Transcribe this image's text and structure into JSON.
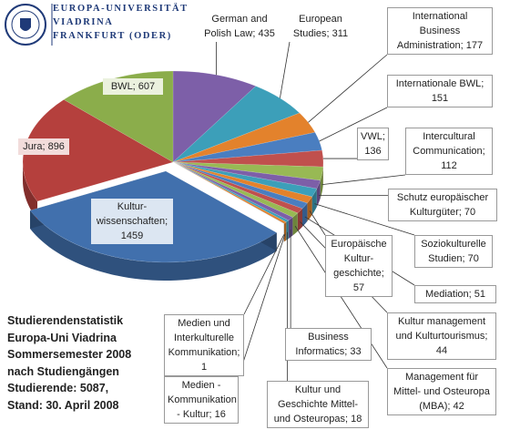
{
  "chart_data": {
    "type": "pie",
    "logo": [
      "EUROPA-UNIVERSITÄT",
      "VIADRINA",
      "FRANKFURT (ODER)"
    ],
    "title": [
      "Studierendenstatistik",
      "Europa-Uni Viadrina",
      "Sommersemester 2008",
      "nach Studiengängen",
      "Studierende: 5087,",
      "Stand:  30. April 2008"
    ],
    "values": [
      435,
      311,
      177,
      151,
      136,
      112,
      70,
      70,
      57,
      51,
      44,
      42,
      33,
      18,
      16,
      1,
      1459,
      896,
      607
    ],
    "value_labels": [
      "German and Polish Law; 435",
      "European Studies; 311",
      "International Business Administration; 177",
      "Internationale BWL; 151",
      "VWL; 136",
      "Intercultural Communication; 112",
      "Schutz europäischer Kulturgüter; 70",
      "Soziokulturelle Studien; 70",
      "Europäische Kultur-geschichte; 57",
      "Mediation; 51",
      "Kultur management und Kulturtourismus; 44",
      "Management für Mittel- und Osteuropa (MBA); 42",
      "Business Informatics; 33",
      "Kultur und Geschichte Mittel- und Osteuropas; 18",
      "Medien - Kommunikation - Kultur; 16",
      "Medien und Interkulturelle Kommunikation; 1",
      "Kultur-wissenschaften; 1459",
      "Jura; 896",
      "BWL; 607"
    ],
    "colors": [
      "#7d5fa8",
      "#3c9fb9",
      "#e3822c",
      "#4a7ec0",
      "#c0504d",
      "#98b954",
      "#7d5fa8",
      "#3c9fb9",
      "#e3822c",
      "#4a7ec0",
      "#c0504d",
      "#98b954",
      "#7d5fa8",
      "#3c9fb9",
      "#e3822c",
      "#4a7ec0",
      "#4170ad",
      "#b5403d",
      "#8bad4b"
    ]
  }
}
